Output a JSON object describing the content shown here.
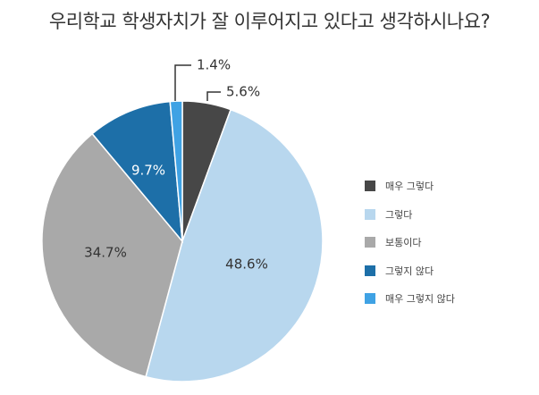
{
  "chart_data": {
    "type": "pie",
    "title": "우리학교 학생자치가 잘 이루어지고 있다고 생각하시나요?",
    "unit": "%",
    "legend_position": "right",
    "slices": [
      {
        "label": "매우 그렇다",
        "value": 5.6,
        "value_label": "5.6%",
        "color": "#474747"
      },
      {
        "label": "그렇다",
        "value": 48.6,
        "value_label": "48.6%",
        "color": "#b8d7ee"
      },
      {
        "label": "보통이다",
        "value": 34.7,
        "value_label": "34.7%",
        "color": "#a9a9a9"
      },
      {
        "label": "그렇지 않다",
        "value": 9.7,
        "value_label": "9.7%",
        "color": "#1d6fa8"
      },
      {
        "label": "매우 그렇지 않다",
        "value": 1.4,
        "value_label": "1.4%",
        "color": "#3fa2e4"
      }
    ]
  }
}
